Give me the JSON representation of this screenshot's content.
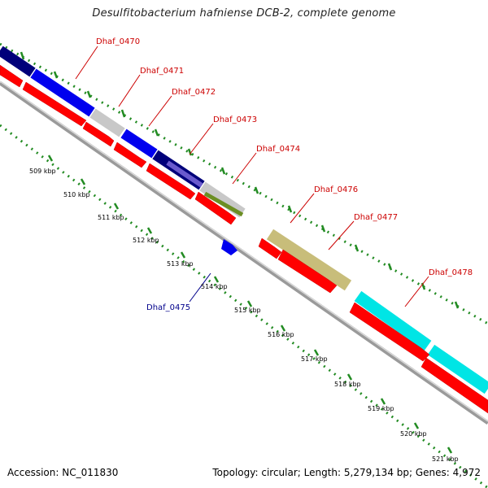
{
  "title": "Desulfitobacterium hafniense DCB-2, complete genome",
  "footer": {
    "accession": "Accession: NC_011830",
    "stats": "Topology: circular; Length: 5,279,134 bp; Genes: 4,972"
  },
  "scale_labels": [
    "509 kbp",
    "510 kbp",
    "511 kbp",
    "512 kbp",
    "513 kbp",
    "514 kbp",
    "515 kbp",
    "516 kbp",
    "517 kbp",
    "518 kbp",
    "519 kbp",
    "520 kbp",
    "521 kbp"
  ],
  "gene_labels": [
    "Dhaf_0470",
    "Dhaf_0471",
    "Dhaf_0472",
    "Dhaf_0473",
    "Dhaf_0474",
    "Dhaf_0476",
    "Dhaf_0477",
    "Dhaf_0478",
    "Dhaf_0475"
  ],
  "colors": {
    "label_forward": "#cc0000",
    "label_reverse": "#00008b",
    "cds_red": "#ff0000",
    "scale_dots": "#228b22",
    "backbone": "#888888",
    "navy": "#00007a",
    "blue": "#0000ee",
    "gray": "#c8c8c8",
    "purple": "#6a5acd",
    "olive": "#6b8e23",
    "khaki": "#c8bd7a",
    "cyan": "#00e5e5"
  }
}
